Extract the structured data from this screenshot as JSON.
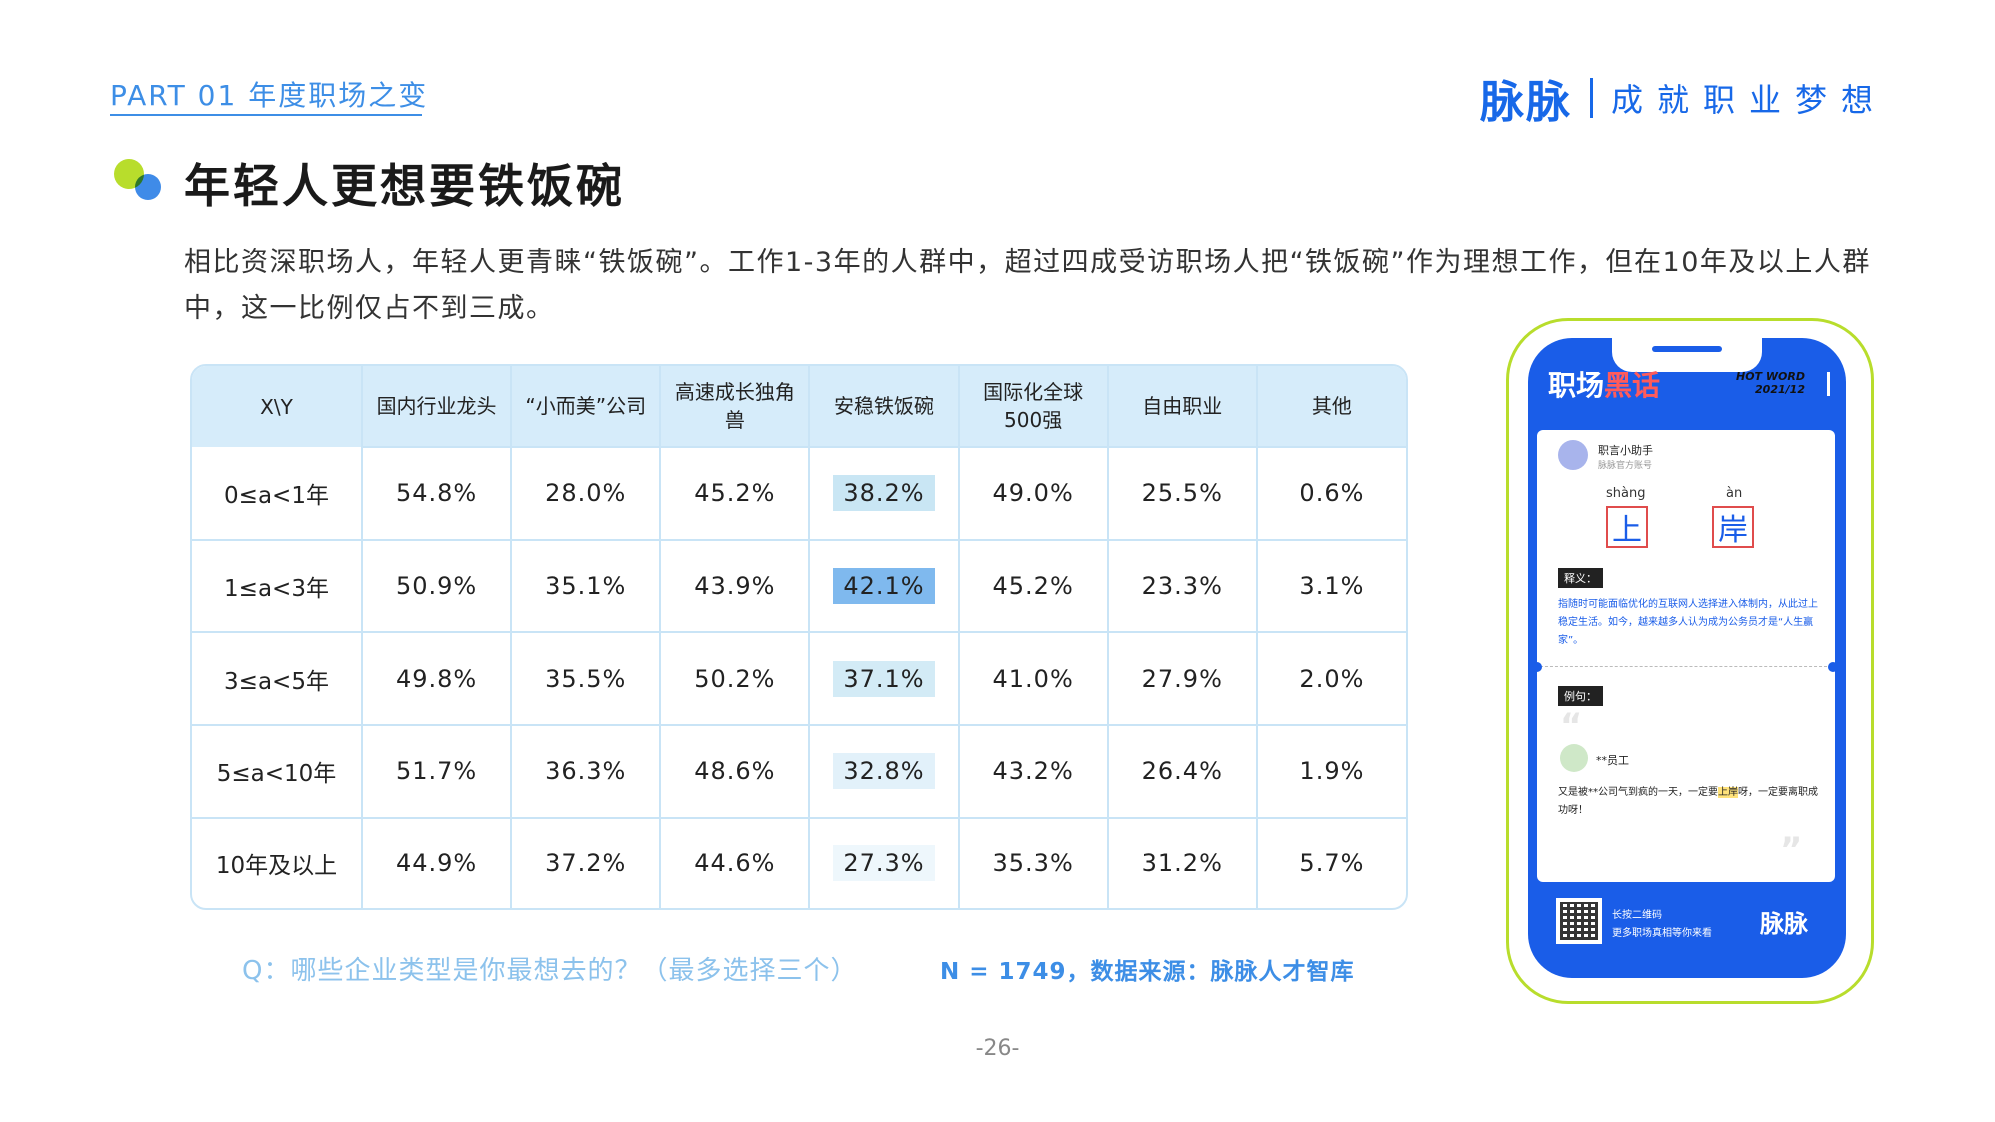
{
  "header": {
    "part_label": "PART 01 年度职场之变",
    "brand_logo": "脉脉",
    "brand_slogan": "成就职业梦想"
  },
  "title": "年轻人更想要铁饭碗",
  "description": "相比资深职场人，年轻人更青睐“铁饭碗”。工作1-3年的人群中，超过四成受访职场人把“铁饭碗”作为理想工作，但在10年及以上人群中，这一比例仅占不到三成。",
  "table": {
    "corner": "X\\Y",
    "columns": [
      "国内行业龙头",
      "“小而美”公司",
      "高速成长独角兽",
      "安稳铁饭碗",
      "国际化全球500强",
      "自由职业",
      "其他"
    ],
    "highlight_colors": [
      "#c9e6f4",
      "#7fb9ee",
      "#d3ebf6",
      "#e2f1fa",
      "#eef7fc"
    ],
    "rows": [
      {
        "label": "0≤a<1年",
        "values": [
          "54.8%",
          "28.0%",
          "45.2%",
          "38.2%",
          "49.0%",
          "25.5%",
          "0.6%"
        ]
      },
      {
        "label": "1≤a<3年",
        "values": [
          "50.9%",
          "35.1%",
          "43.9%",
          "42.1%",
          "45.2%",
          "23.3%",
          "3.1%"
        ]
      },
      {
        "label": "3≤a<5年",
        "values": [
          "49.8%",
          "35.5%",
          "50.2%",
          "37.1%",
          "41.0%",
          "27.9%",
          "2.0%"
        ]
      },
      {
        "label": "5≤a<10年",
        "values": [
          "51.7%",
          "36.3%",
          "48.6%",
          "32.8%",
          "43.2%",
          "26.4%",
          "1.9%"
        ]
      },
      {
        "label": "10年及以上",
        "values": [
          "44.9%",
          "37.2%",
          "44.6%",
          "27.3%",
          "35.3%",
          "31.2%",
          "5.7%"
        ]
      }
    ]
  },
  "footnote_question": "Q：哪些企业类型是你最想去的？（最多选择三个）",
  "footnote_source": "N = 1749，数据来源：脉脉人才智库",
  "page_number": "-26-",
  "phone": {
    "title_white": "职场",
    "title_red": "黑话",
    "hot_word_line1": "HOT WORD",
    "hot_word_line2": "2021/12",
    "account_name": "职言小助手",
    "account_sub": "脉脉官方账号",
    "pinyin1": "shàng",
    "pinyin2": "àn",
    "char1": "上",
    "char2": "岸",
    "def_tag": "释义：",
    "def_text": "指随时可能面临优化的互联网人选择进入体制内，从此过上稳定生活。如今，越来越多人认为成为公务员才是“人生赢家”。",
    "ex_tag": "例句：",
    "employee_name": "**员工",
    "example_before": "又是被**公司气到疯的一天，一定要",
    "example_mark": "上岸",
    "example_after": "呀，一定要离职成功呀！",
    "qr_text1": "长按二维码",
    "qr_text2": "更多职场真相等你来看",
    "logo": "脉脉"
  }
}
